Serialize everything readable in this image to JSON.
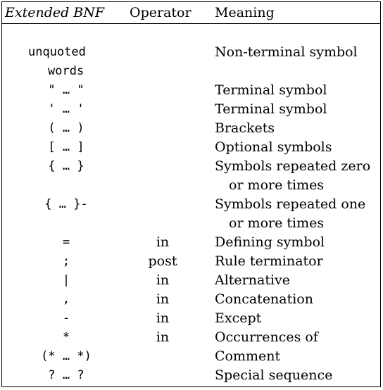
{
  "header": {
    "ebnf": "Extended BNF",
    "operator": "Operator",
    "meaning": "Meaning"
  },
  "rows": [
    {
      "ebnf": "unquoted",
      "operator": "",
      "meaning": "Non-terminal symbol"
    },
    {
      "ebnf": "words",
      "operator": "",
      "meaning": ""
    },
    {
      "ebnf": "\" … \"",
      "operator": "",
      "meaning": "Terminal symbol"
    },
    {
      "ebnf": "' … '",
      "operator": "",
      "meaning": "Terminal symbol"
    },
    {
      "ebnf": "( … )",
      "operator": "",
      "meaning": "Brackets"
    },
    {
      "ebnf": "[ … ]",
      "operator": "",
      "meaning": "Optional symbols"
    },
    {
      "ebnf": "{ … }",
      "operator": "",
      "meaning": "Symbols repeated zero"
    },
    {
      "ebnf": "",
      "operator": "",
      "meaning": "or more times"
    },
    {
      "ebnf": "{ … }-",
      "operator": "",
      "meaning": "Symbols repeated one"
    },
    {
      "ebnf": "",
      "operator": "",
      "meaning": "or more times"
    },
    {
      "ebnf": "=",
      "operator": "in",
      "meaning": "Defining symbol"
    },
    {
      "ebnf": ";",
      "operator": "post",
      "meaning": "Rule terminator"
    },
    {
      "ebnf": "|",
      "operator": "in",
      "meaning": "Alternative"
    },
    {
      "ebnf": ",",
      "operator": "in",
      "meaning": "Concatenation"
    },
    {
      "ebnf": "-",
      "operator": "in",
      "meaning": "Except"
    },
    {
      "ebnf": "*",
      "operator": "in",
      "meaning": "Occurrences of"
    },
    {
      "ebnf": "(* … *)",
      "operator": "",
      "meaning": "Comment"
    },
    {
      "ebnf": "? … ?",
      "operator": "",
      "meaning": "Special sequence"
    }
  ]
}
